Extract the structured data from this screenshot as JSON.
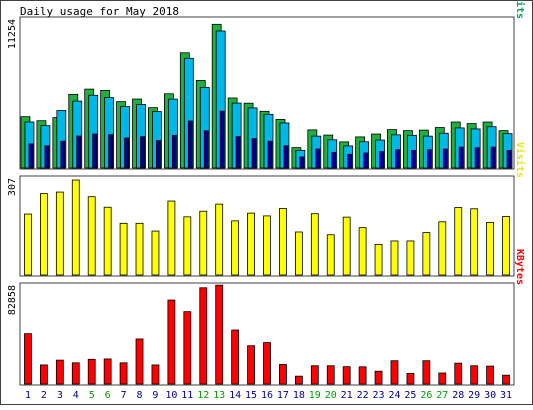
{
  "chart_data": {
    "type": "bar",
    "title": "Daily usage for May 2018",
    "categories": [
      "1",
      "2",
      "3",
      "4",
      "5",
      "6",
      "7",
      "8",
      "9",
      "10",
      "11",
      "12",
      "13",
      "14",
      "15",
      "16",
      "17",
      "18",
      "19",
      "20",
      "21",
      "22",
      "23",
      "24",
      "25",
      "26",
      "27",
      "28",
      "29",
      "30",
      "31"
    ],
    "weekend_days": [
      "5",
      "6",
      "12",
      "13",
      "19",
      "20",
      "26",
      "27"
    ],
    "panels": [
      {
        "id": "pages_files_hits",
        "label_parts": [
          {
            "text": "Pages",
            "color": "#00a0c8"
          },
          {
            "text": "/",
            "color": "#000000"
          },
          {
            "text": "Files",
            "color": "#00a0c8"
          },
          {
            "text": "/",
            "color": "#000000"
          },
          {
            "text": "Hits",
            "color": "#00a050"
          }
        ],
        "max_label": "11254",
        "ymax": 11254,
        "series": [
          {
            "name": "Hits",
            "color": "#20b040",
            "values": [
              3930,
              3620,
              3860,
              5640,
              6040,
              5940,
              5080,
              5280,
              4620,
              5680,
              8820,
              6700,
              11000,
              5360,
              4960,
              4340,
              3720,
              1560,
              2920,
              2520,
              2000,
              2380,
              2600,
              2940,
              2860,
              2900,
              3100,
              3520,
              3400,
              3520,
              2860
            ]
          },
          {
            "name": "Files",
            "color": "#00b8e8",
            "values": [
              3520,
              3240,
              4400,
              5120,
              5570,
              5390,
              4700,
              4860,
              4320,
              5270,
              8400,
              6170,
              10490,
              4970,
              4600,
              4110,
              3450,
              1350,
              2440,
              2160,
              1690,
              2010,
              2140,
              2540,
              2500,
              2440,
              2660,
              3070,
              2990,
              3160,
              2630
            ]
          },
          {
            "name": "Pages",
            "color": "#0000a0",
            "values": [
              1850,
              1700,
              2050,
              2450,
              2600,
              2550,
              2300,
              2400,
              2100,
              2500,
              3600,
              2850,
              4350,
              2400,
              2250,
              2050,
              1700,
              850,
              1450,
              1200,
              1050,
              1150,
              1250,
              1400,
              1350,
              1400,
              1450,
              1600,
              1550,
              1600,
              1350
            ]
          }
        ]
      },
      {
        "id": "visits",
        "label_parts": [
          {
            "text": "Visits",
            "color": "#e8e800"
          }
        ],
        "max_label": "307",
        "ymax": 307,
        "series": [
          {
            "name": "Visits",
            "color": "#ffff00",
            "values": [
              197,
              263,
              268,
              307,
              253,
              219,
              167,
              167,
              142,
              239,
              188,
              206,
              229,
              175,
              200,
              191,
              215,
              139,
              198,
              130,
              187,
              153,
              99,
              110,
              110,
              137,
              172,
              218,
              214,
              170,
              189
            ]
          }
        ]
      },
      {
        "id": "kbytes",
        "label_parts": [
          {
            "text": "KBytes",
            "color": "#ff0000"
          }
        ],
        "max_label": "82858",
        "ymax": 82858,
        "series": [
          {
            "name": "KBytes",
            "color": "#ff0000",
            "values": [
              43000,
              16300,
              20400,
              18100,
              21100,
              21400,
              18100,
              38500,
              16300,
              71700,
              61800,
              82200,
              84400,
              46100,
              32700,
              35400,
              16700,
              6700,
              15600,
              15600,
              14800,
              14700,
              10900,
              19900,
              9000,
              19900,
              9400,
              17800,
              15600,
              15300,
              7500
            ]
          }
        ]
      }
    ],
    "x_label_colors": {
      "weekday": "#00008b",
      "weekend": "#00a000"
    }
  }
}
